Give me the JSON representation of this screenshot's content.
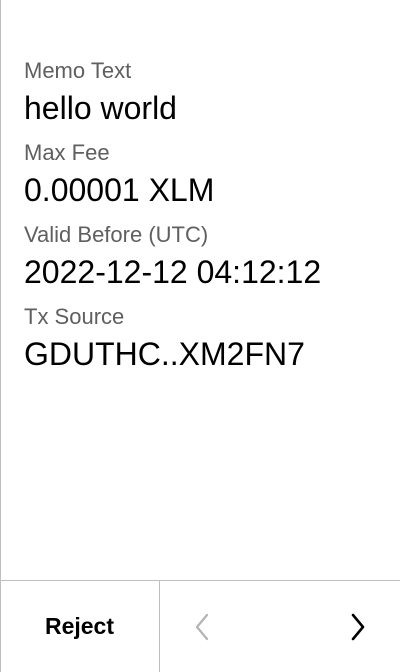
{
  "fields": [
    {
      "label": "Memo Text",
      "value": "hello world"
    },
    {
      "label": "Max Fee",
      "value": "0.00001 XLM"
    },
    {
      "label": "Valid Before (UTC)",
      "value": "2022-12-12 04:12:12"
    },
    {
      "label": "Tx Source",
      "value": "GDUTHC..XM2FN7"
    }
  ],
  "footer": {
    "reject_label": "Reject",
    "prev_icon": "chevron-left-icon",
    "next_icon": "chevron-right-icon",
    "prev_enabled": false,
    "next_enabled": true
  },
  "colors": {
    "label": "#5f5f5f",
    "value": "#000000",
    "divider": "#bfbfbf",
    "disabled_icon": "#b3b3b3"
  }
}
